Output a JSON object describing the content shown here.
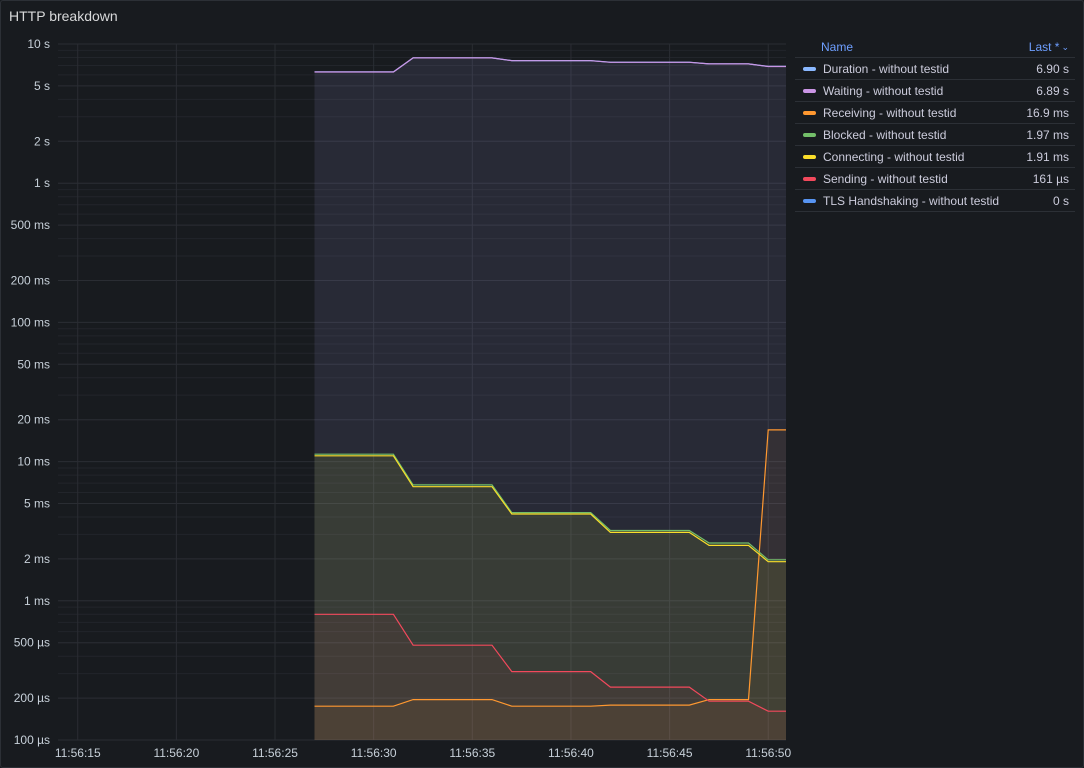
{
  "panel": {
    "title": "HTTP breakdown"
  },
  "legend": {
    "name_header": "Name",
    "last_header": "Last *",
    "rows": [
      {
        "name": "Duration - without testid",
        "last": "6.90 s",
        "color": "#8ab8ff"
      },
      {
        "name": "Waiting - without testid",
        "last": "6.89 s",
        "color": "#ca95e5"
      },
      {
        "name": "Receiving - without testid",
        "last": "16.9 ms",
        "color": "#ff9830"
      },
      {
        "name": "Blocked - without testid",
        "last": "1.97 ms",
        "color": "#73bf69"
      },
      {
        "name": "Connecting - without testid",
        "last": "1.91 ms",
        "color": "#fade2a"
      },
      {
        "name": "Sending - without testid",
        "last": "161 µs",
        "color": "#f2495c"
      },
      {
        "name": "TLS Handshaking - without testid",
        "last": "0 s",
        "color": "#5794f2"
      }
    ]
  },
  "chart_data": {
    "type": "line",
    "title": "HTTP breakdown",
    "scale_y": "log",
    "ylim_seconds": [
      0.0001,
      10
    ],
    "y_ticks": [
      {
        "v": 10,
        "label": "10 s"
      },
      {
        "v": 5,
        "label": "5 s"
      },
      {
        "v": 2,
        "label": "2 s"
      },
      {
        "v": 1,
        "label": "1 s"
      },
      {
        "v": 0.5,
        "label": "500 ms"
      },
      {
        "v": 0.2,
        "label": "200 ms"
      },
      {
        "v": 0.1,
        "label": "100 ms"
      },
      {
        "v": 0.05,
        "label": "50 ms"
      },
      {
        "v": 0.02,
        "label": "20 ms"
      },
      {
        "v": 0.01,
        "label": "10 ms"
      },
      {
        "v": 0.005,
        "label": "5 ms"
      },
      {
        "v": 0.002,
        "label": "2 ms"
      },
      {
        "v": 0.001,
        "label": "1 ms"
      },
      {
        "v": 0.0005,
        "label": "500 µs"
      },
      {
        "v": 0.0002,
        "label": "200 µs"
      },
      {
        "v": 0.0001,
        "label": "100 µs"
      }
    ],
    "xlim": [
      "11:56:14",
      "11:56:50.9"
    ],
    "x_ticks": [
      "11:56:15",
      "11:56:20",
      "11:56:25",
      "11:56:30",
      "11:56:35",
      "11:56:40",
      "11:56:45",
      "11:56:50"
    ],
    "x_unit": "seconds after 11:56:00",
    "grid": true,
    "legend_placement": "right",
    "series": [
      {
        "name": "Duration - without testid",
        "color": "#8ab8ff",
        "points": [
          [
            27,
            6.3
          ],
          [
            31,
            6.3
          ],
          [
            32,
            7.95
          ],
          [
            36,
            7.95
          ],
          [
            37,
            7.6
          ],
          [
            41,
            7.6
          ],
          [
            42,
            7.4
          ],
          [
            46,
            7.4
          ],
          [
            47,
            7.2
          ],
          [
            49,
            7.2
          ],
          [
            50,
            6.9
          ],
          [
            50.9,
            6.9
          ]
        ]
      },
      {
        "name": "Waiting - without testid",
        "color": "#ca95e5",
        "points": [
          [
            27,
            6.29
          ],
          [
            31,
            6.29
          ],
          [
            32,
            7.94
          ],
          [
            36,
            7.94
          ],
          [
            37,
            7.59
          ],
          [
            41,
            7.59
          ],
          [
            42,
            7.39
          ],
          [
            46,
            7.39
          ],
          [
            47,
            7.19
          ],
          [
            49,
            7.19
          ],
          [
            50,
            6.89
          ],
          [
            50.9,
            6.89
          ]
        ]
      },
      {
        "name": "Receiving - without testid",
        "color": "#ff9830",
        "points": [
          [
            27,
            0.000175
          ],
          [
            31,
            0.000175
          ],
          [
            32,
            0.000195
          ],
          [
            36,
            0.000195
          ],
          [
            37,
            0.000175
          ],
          [
            41,
            0.000175
          ],
          [
            42,
            0.000178
          ],
          [
            46,
            0.000178
          ],
          [
            47,
            0.000195
          ],
          [
            49,
            0.000195
          ],
          [
            50,
            0.0169
          ],
          [
            50.9,
            0.0169
          ]
        ]
      },
      {
        "name": "Blocked - without testid",
        "color": "#73bf69",
        "points": [
          [
            27,
            0.0113
          ],
          [
            31,
            0.0113
          ],
          [
            32,
            0.0068
          ],
          [
            36,
            0.0068
          ],
          [
            37,
            0.0043
          ],
          [
            41,
            0.0043
          ],
          [
            42,
            0.0032
          ],
          [
            46,
            0.0032
          ],
          [
            47,
            0.0026
          ],
          [
            49,
            0.0026
          ],
          [
            50,
            0.00197
          ],
          [
            50.9,
            0.00197
          ]
        ]
      },
      {
        "name": "Connecting - without testid",
        "color": "#fade2a",
        "points": [
          [
            27,
            0.011
          ],
          [
            31,
            0.011
          ],
          [
            32,
            0.0066
          ],
          [
            36,
            0.0066
          ],
          [
            37,
            0.0042
          ],
          [
            41,
            0.0042
          ],
          [
            42,
            0.0031
          ],
          [
            46,
            0.0031
          ],
          [
            47,
            0.0025
          ],
          [
            49,
            0.0025
          ],
          [
            50,
            0.00191
          ],
          [
            50.9,
            0.00191
          ]
        ]
      },
      {
        "name": "Sending - without testid",
        "color": "#f2495c",
        "points": [
          [
            27,
            0.0008
          ],
          [
            31,
            0.0008
          ],
          [
            32,
            0.00048
          ],
          [
            36,
            0.00048
          ],
          [
            37,
            0.00031
          ],
          [
            41,
            0.00031
          ],
          [
            42,
            0.00024
          ],
          [
            46,
            0.00024
          ],
          [
            47,
            0.00019
          ],
          [
            49,
            0.00019
          ],
          [
            50,
            0.000161
          ],
          [
            50.9,
            0.000161
          ]
        ]
      },
      {
        "name": "TLS Handshaking - without testid",
        "color": "#5794f2",
        "points": []
      }
    ]
  }
}
